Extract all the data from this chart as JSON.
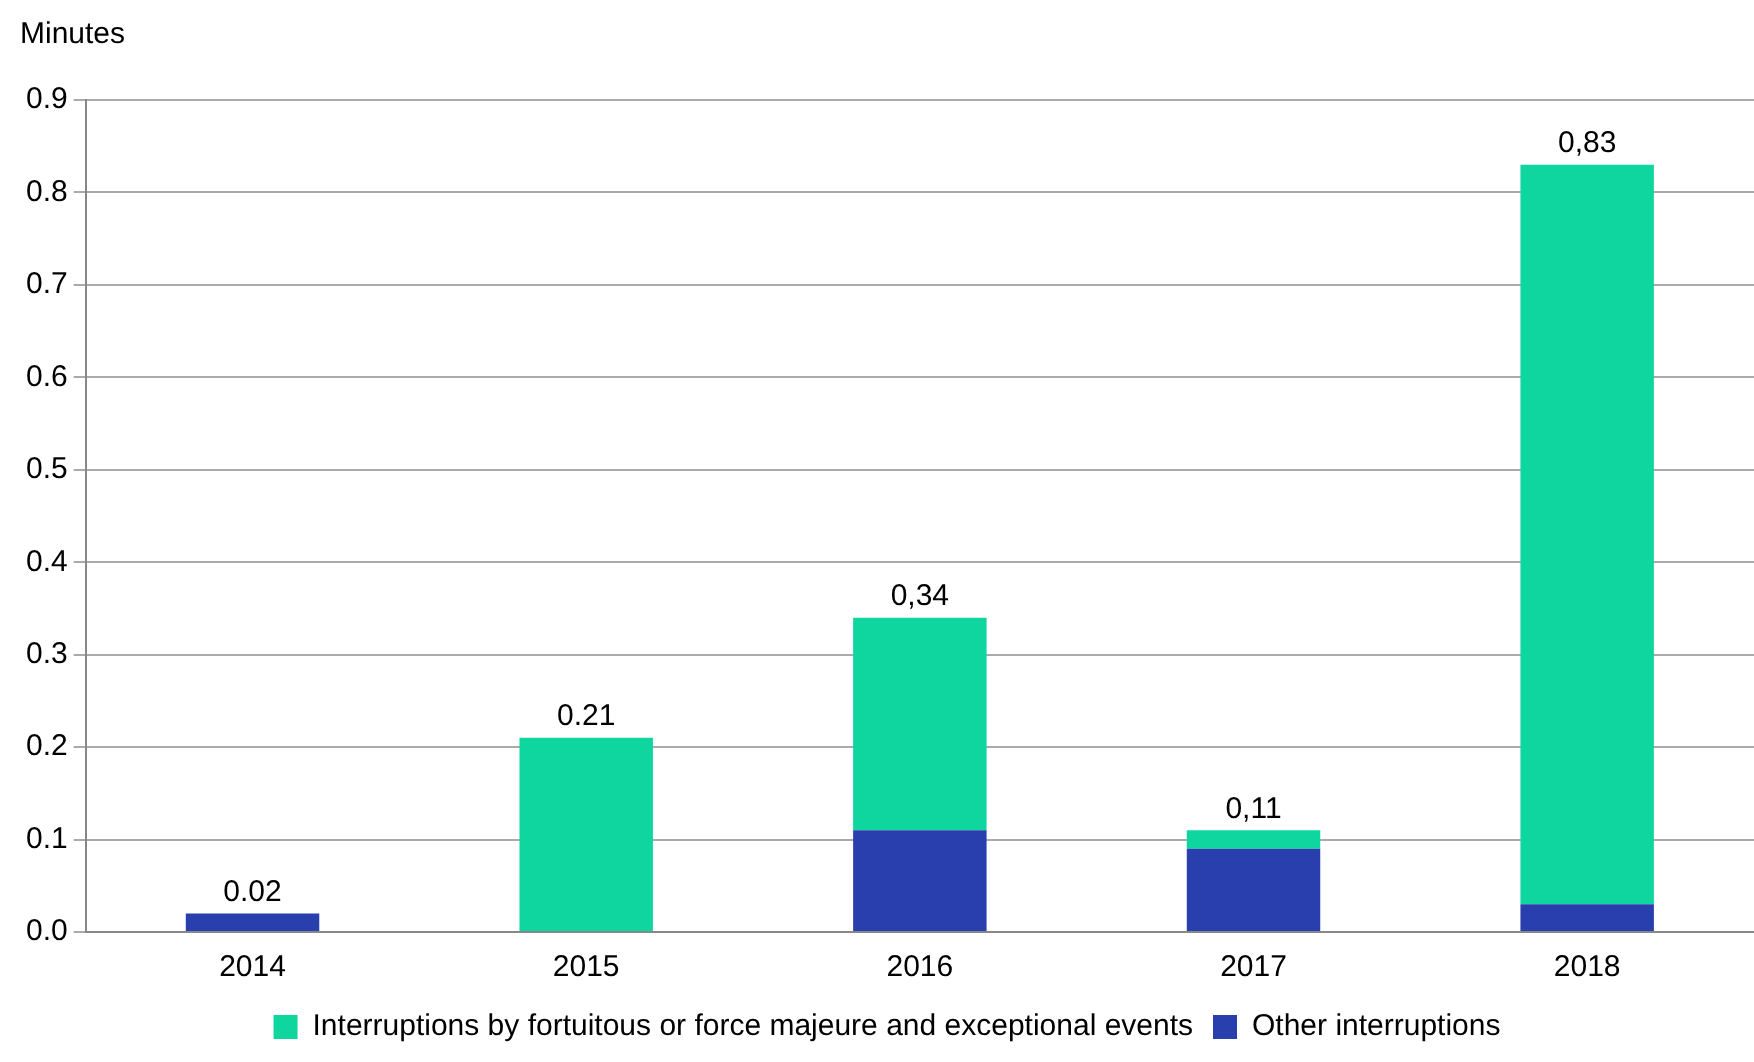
{
  "chart_data": {
    "type": "bar",
    "stacked": true,
    "ylabel": "Minutes",
    "categories": [
      "2014",
      "2015",
      "2016",
      "2017",
      "2018"
    ],
    "series": [
      {
        "name": "Other interruptions",
        "color": "#2a3fae",
        "values": [
          0.02,
          null,
          0.11,
          0.09,
          0.03
        ]
      },
      {
        "name": "Interruptions by fortuitous or force majeure and exceptional events",
        "color": "#0fd69e",
        "values": [
          null,
          0.21,
          0.23,
          0.02,
          0.8
        ]
      }
    ],
    "totals": [
      "0.02",
      "0.21",
      "0,34",
      "0,11",
      "0,83"
    ],
    "ylim": [
      0,
      0.9
    ],
    "yticks": [
      {
        "value": 0,
        "label": "0.0"
      },
      {
        "value": 0.1,
        "label": "0.1"
      },
      {
        "value": 0.2,
        "label": "0.2"
      },
      {
        "value": 0.3,
        "label": "0.3"
      },
      {
        "value": 0.4,
        "label": "0.4"
      },
      {
        "value": 0.5,
        "label": "0.5"
      },
      {
        "value": 0.6,
        "label": "0.6"
      },
      {
        "value": 0.7,
        "label": "0.7"
      },
      {
        "value": 0.8,
        "label": "0.8"
      },
      {
        "value": 0.9,
        "label": "0.9"
      }
    ],
    "grid": "y",
    "legend": "bottom"
  }
}
